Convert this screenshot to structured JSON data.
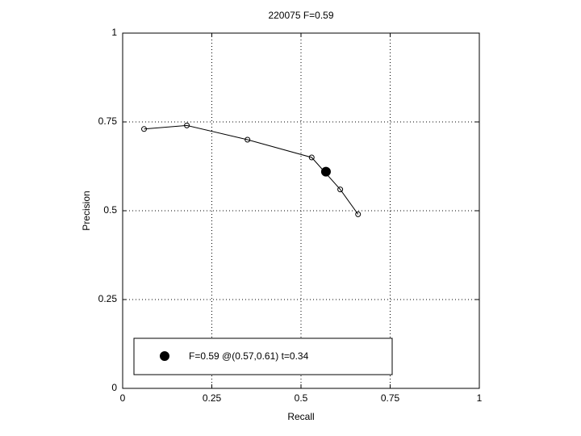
{
  "chart_data": {
    "type": "line",
    "title": "220075 F=0.59",
    "xlabel": "Recall",
    "ylabel": "Precision",
    "xlim": [
      0,
      1
    ],
    "ylim": [
      0,
      1
    ],
    "xticks": [
      0,
      0.25,
      0.5,
      0.75,
      1
    ],
    "yticks": [
      0,
      0.25,
      0.5,
      0.75,
      1
    ],
    "grid": true,
    "legend": "lower left",
    "series": [
      {
        "color": "#000000",
        "marker": "open",
        "x": [
          0.06,
          0.18,
          0.35,
          0.53,
          0.61,
          0.66
        ],
        "values": [
          0.73,
          0.74,
          0.7,
          0.65,
          0.56,
          0.49
        ]
      },
      {
        "name": "F=0.59 @(0.57,0.61) t=0.34",
        "color": "#000000",
        "marker": "filled",
        "x": [
          0.57
        ],
        "values": [
          0.61
        ]
      }
    ]
  }
}
